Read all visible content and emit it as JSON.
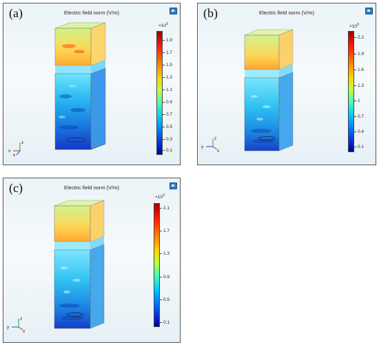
{
  "colors": {
    "accent_red": "#ff1a00",
    "accent_blue": "#0060ff",
    "frame": "#555555"
  },
  "panels": [
    {
      "letter": "(a)",
      "title": "Electric field norm (V/m)",
      "colorbar_exponent": "×10",
      "colorbar_exponent_power": "3",
      "colorbar_ticks": [
        "1.9",
        "1.7",
        "1.5",
        "1.3",
        "1.1",
        "0.9",
        "0.7",
        "0.5",
        "0.3",
        "0.1"
      ],
      "axis_labels": [
        "z",
        "x",
        "y"
      ],
      "corner_icon": "camera-icon"
    },
    {
      "letter": "(b)",
      "title": "Electric field norm (V/m)",
      "colorbar_exponent": "×10",
      "colorbar_exponent_power": "3",
      "colorbar_ticks": [
        "2.2",
        "1.9",
        "1.6",
        "1.3",
        "1",
        "0.7",
        "0.4",
        "0.1"
      ],
      "axis_labels": [
        "z",
        "y",
        "x"
      ],
      "corner_icon": "camera-icon"
    },
    {
      "letter": "(c)",
      "title": "Electric field norm (V/m)",
      "colorbar_exponent": "×10",
      "colorbar_exponent_power": "3",
      "colorbar_ticks": [
        "2.1",
        "1.7",
        "1.3",
        "0.9",
        "0.5",
        "0.1"
      ],
      "axis_labels": [
        "z",
        "y",
        "x"
      ],
      "corner_icon": "camera-icon"
    }
  ]
}
